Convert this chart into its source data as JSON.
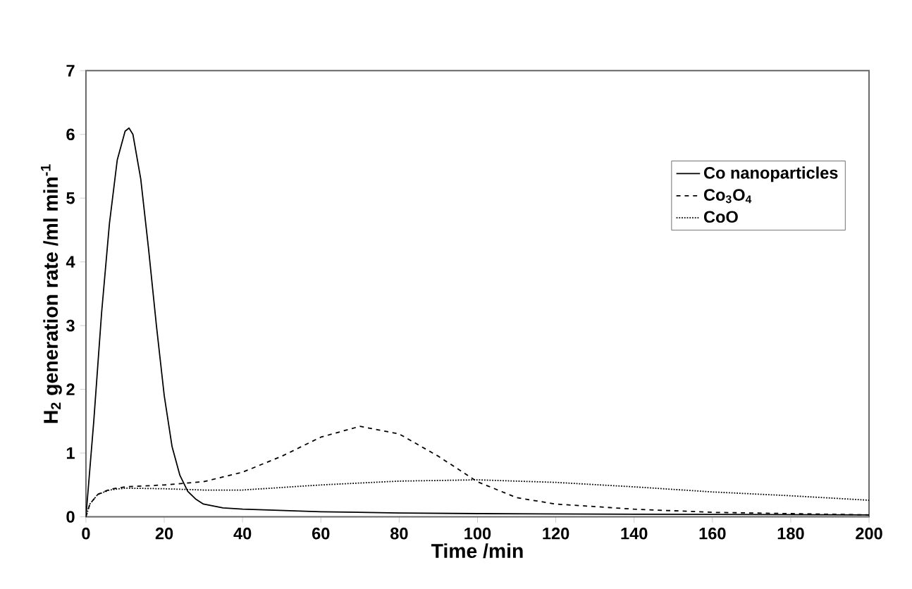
{
  "chart_data": {
    "type": "line",
    "xlabel": "Time /min",
    "ylabel": "H$_{2}$ generation rate /ml min$^{-1}$",
    "xlim": [
      0,
      200
    ],
    "ylim": [
      0,
      7
    ],
    "xticks": [
      0,
      20,
      40,
      60,
      80,
      100,
      120,
      140,
      160,
      180,
      200
    ],
    "yticks": [
      0,
      1,
      2,
      3,
      4,
      5,
      6,
      7
    ],
    "legend": "right",
    "grid": false,
    "marker": "none",
    "series": [
      {
        "name": "Co nanoparticles",
        "color": "#000000",
        "line_style": "solid",
        "x": [
          0,
          2,
          4,
          6,
          8,
          10,
          11,
          12,
          14,
          16,
          18,
          20,
          22,
          24,
          26,
          28,
          30,
          35,
          40,
          60,
          80,
          100,
          140,
          200
        ],
        "values": [
          0,
          1.5,
          3.2,
          4.6,
          5.6,
          6.05,
          6.1,
          6.0,
          5.3,
          4.2,
          3.0,
          1.9,
          1.1,
          0.65,
          0.4,
          0.28,
          0.2,
          0.14,
          0.12,
          0.08,
          0.06,
          0.05,
          0.04,
          0.03
        ]
      },
      {
        "name": "Co$_{3}$O$_{4}$",
        "color": "#000000",
        "line_style": "dashed",
        "x": [
          0,
          1,
          3,
          6,
          10,
          20,
          30,
          40,
          50,
          60,
          70,
          80,
          90,
          100,
          110,
          120,
          140,
          160,
          180,
          200
        ],
        "values": [
          0,
          0.2,
          0.35,
          0.43,
          0.47,
          0.5,
          0.55,
          0.7,
          0.95,
          1.25,
          1.42,
          1.3,
          0.95,
          0.55,
          0.3,
          0.2,
          0.12,
          0.07,
          0.05,
          0.03
        ]
      },
      {
        "name": "CoO",
        "color": "#000000",
        "line_style": "dotted",
        "x": [
          0,
          1,
          3,
          6,
          10,
          20,
          30,
          40,
          60,
          80,
          100,
          120,
          140,
          160,
          180,
          200
        ],
        "values": [
          0,
          0.2,
          0.35,
          0.42,
          0.45,
          0.44,
          0.42,
          0.42,
          0.5,
          0.56,
          0.58,
          0.54,
          0.47,
          0.39,
          0.33,
          0.26
        ]
      }
    ]
  }
}
